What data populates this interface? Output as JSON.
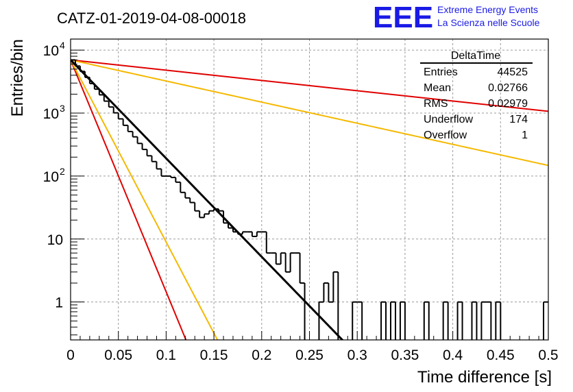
{
  "chart_data": {
    "type": "histogram",
    "title": "CATZ-01-2019-04-08-00018",
    "xlabel": "Time difference [s]",
    "ylabel": "Entries/bin",
    "xlim": [
      0,
      0.5
    ],
    "ylim": [
      0.25,
      15000
    ],
    "yscale": "log",
    "grid": true,
    "x_ticks": [
      "0",
      "0.05",
      "0.1",
      "0.15",
      "0.2",
      "0.25",
      "0.3",
      "0.35",
      "0.4",
      "0.45",
      "0.5"
    ],
    "y_ticks": [
      {
        "value": 1,
        "label": "1"
      },
      {
        "value": 10,
        "label": "10"
      },
      {
        "value": 100,
        "label": "10",
        "exp": "2"
      },
      {
        "value": 1000,
        "label": "10",
        "exp": "3"
      },
      {
        "value": 10000,
        "label": "10",
        "exp": "4"
      }
    ],
    "bin_width": 0.005,
    "histogram": [
      7000,
      5600,
      4600,
      3700,
      2950,
      2400,
      1950,
      1550,
      1250,
      1010,
      810,
      640,
      510,
      420,
      330,
      265,
      210,
      170,
      130,
      100,
      100,
      95,
      80,
      55,
      45,
      38,
      28,
      22,
      25,
      28,
      30,
      28,
      18,
      15,
      13,
      12,
      13,
      13,
      11,
      13,
      13,
      6,
      6,
      4,
      6,
      3,
      6,
      6,
      2,
      0,
      0,
      0,
      1,
      2,
      1,
      3,
      0,
      0,
      0,
      1,
      1,
      0,
      0,
      0,
      0,
      1,
      0,
      1,
      0,
      1,
      0,
      0,
      0,
      0,
      1,
      0,
      0,
      0,
      1,
      0,
      0,
      1,
      0,
      0,
      1,
      0,
      1,
      1,
      0,
      1,
      0,
      0,
      0,
      0,
      0,
      0,
      0,
      0,
      0,
      1
    ],
    "fits": [
      {
        "color": "#000000",
        "amplitude": 7000,
        "rate": 36
      },
      {
        "color": "#e00000",
        "amplitude": 7000,
        "rate": 84.8
      },
      {
        "color": "#f5b800",
        "amplitude": 7000,
        "rate": 66.6
      },
      {
        "color": "#e00000",
        "amplitude": 7000,
        "rate": 3.76
      },
      {
        "color": "#f5b800",
        "amplitude": 7000,
        "rate": 7.72
      }
    ],
    "stats": {
      "title": "DeltaTime",
      "rows": [
        {
          "label": "Entries",
          "value": "44525"
        },
        {
          "label": "Mean",
          "value": "0.02766"
        },
        {
          "label": "RMS",
          "value": "0.02979"
        },
        {
          "label": "Underflow",
          "value": "174"
        },
        {
          "label": "Overflow",
          "value": "1"
        }
      ]
    },
    "logo": {
      "text": "EEE",
      "line1": "Extreme Energy Events",
      "line2": "La Scienza nelle Scuole",
      "color": "#1a1ae6"
    }
  }
}
